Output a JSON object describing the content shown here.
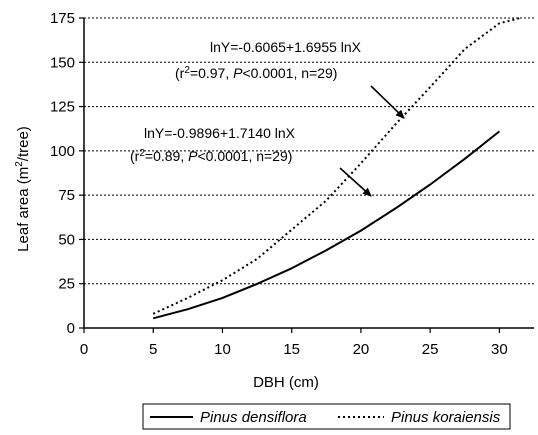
{
  "chart_data": {
    "type": "line",
    "title": "",
    "xlabel": "DBH (cm)",
    "ylabel": "Leaf area (m²/tree)",
    "ylabel_parts": {
      "pre": "Leaf area (m",
      "sup": "2",
      "post": "/tree)"
    },
    "xlim": [
      0,
      32.5
    ],
    "ylim": [
      0,
      175
    ],
    "xticks": [
      0,
      5,
      10,
      15,
      20,
      25,
      30
    ],
    "yticks": [
      0,
      25,
      50,
      75,
      100,
      125,
      150,
      175
    ],
    "grid": "horizontal dotted",
    "legend": "bottom",
    "series": [
      {
        "name": "Pinus densiflora",
        "style": "solid",
        "color": "#000000",
        "x": [
          5,
          7.5,
          10,
          12.5,
          15,
          17.5,
          20,
          22.5,
          25,
          27.5,
          30
        ],
        "y": [
          5.5,
          10.6,
          17.0,
          24.9,
          33.7,
          43.9,
          55.0,
          67.5,
          81.0,
          95.5,
          111.0
        ]
      },
      {
        "name": "Pinus koraiensis",
        "style": "dotted",
        "color": "#000000",
        "x": [
          5,
          7.5,
          10,
          12.5,
          15,
          17.5,
          20,
          22.5,
          25,
          27.5,
          30,
          31.5
        ],
        "y": [
          8.0,
          17.0,
          27.0,
          39.0,
          55.5,
          72.0,
          93.0,
          115.0,
          136.0,
          157.5,
          172.0,
          175.0
        ]
      }
    ],
    "annotations": [
      {
        "line1": "lnY=-0.6065+1.6955 lnX",
        "r2": "0.97",
        "p": "0.0001",
        "n": "29"
      },
      {
        "line1": "lnY=-0.9896+1.7140 lnX",
        "r2": "0.89",
        "p": "0.0001",
        "n": "29"
      }
    ]
  }
}
